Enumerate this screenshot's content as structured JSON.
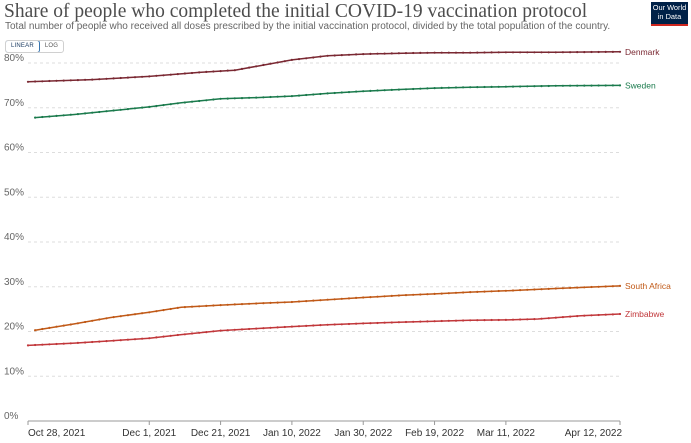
{
  "chart_data": {
    "type": "line",
    "title": "Share of people who completed the initial COVID-19 vaccination protocol",
    "subtitle": "Total number of people who received all doses prescribed by the initial vaccination protocol, divided by the total population of the country.",
    "y_unit": "%",
    "ylim": [
      0,
      80
    ],
    "y_ticks": [
      "0%",
      "10%",
      "20%",
      "30%",
      "40%",
      "50%",
      "60%",
      "70%",
      "80%"
    ],
    "y_tick_values": [
      0,
      10,
      20,
      30,
      40,
      50,
      60,
      70,
      80
    ],
    "xlim": [
      "2021-10-28",
      "2022-04-12"
    ],
    "x_ticks": [
      "Oct 28, 2021",
      "Dec 1, 2021",
      "Dec 21, 2021",
      "Jan 10, 2022",
      "Jan 30, 2022",
      "Feb 19, 2022",
      "Mar 11, 2022",
      "Apr 12, 2022"
    ],
    "x_tick_dates": [
      "2021-10-28",
      "2021-12-01",
      "2021-12-21",
      "2022-01-10",
      "2022-01-30",
      "2022-02-19",
      "2022-03-11",
      "2022-04-12"
    ],
    "grid": "horizontal dashed",
    "legend": "labels at line ends (right)",
    "series": [
      {
        "name": "Denmark",
        "color": "#7a2832",
        "x": [
          "2021-10-28",
          "2021-11-15",
          "2021-12-01",
          "2021-12-15",
          "2021-12-25",
          "2022-01-01",
          "2022-01-10",
          "2022-01-20",
          "2022-01-30",
          "2022-02-10",
          "2022-02-19",
          "2022-03-01",
          "2022-03-11",
          "2022-03-25",
          "2022-04-12"
        ],
        "values": [
          75.8,
          76.3,
          77.0,
          77.9,
          78.4,
          79.4,
          80.7,
          81.6,
          82.0,
          82.2,
          82.3,
          82.3,
          82.4,
          82.4,
          82.5
        ]
      },
      {
        "name": "Sweden",
        "color": "#1a7a4c",
        "x": [
          "2021-10-30",
          "2021-11-10",
          "2021-11-20",
          "2021-12-01",
          "2021-12-10",
          "2021-12-21",
          "2022-01-01",
          "2022-01-10",
          "2022-01-20",
          "2022-01-30",
          "2022-02-10",
          "2022-02-19",
          "2022-03-01",
          "2022-03-11",
          "2022-03-25",
          "2022-04-12"
        ],
        "values": [
          67.8,
          68.5,
          69.3,
          70.2,
          71.1,
          72.0,
          72.3,
          72.6,
          73.2,
          73.7,
          74.1,
          74.4,
          74.6,
          74.7,
          74.9,
          75.0
        ]
      },
      {
        "name": "South Africa",
        "color": "#c05917",
        "x": [
          "2021-10-30",
          "2021-11-10",
          "2021-11-20",
          "2021-12-01",
          "2021-12-10",
          "2021-12-21",
          "2022-01-01",
          "2022-01-10",
          "2022-01-20",
          "2022-01-30",
          "2022-02-10",
          "2022-02-19",
          "2022-03-01",
          "2022-03-11",
          "2022-03-25",
          "2022-04-12"
        ],
        "values": [
          20.3,
          21.7,
          23.1,
          24.3,
          25.4,
          25.9,
          26.3,
          26.6,
          27.1,
          27.6,
          28.1,
          28.4,
          28.8,
          29.1,
          29.6,
          30.2
        ]
      },
      {
        "name": "Zimbabwe",
        "color": "#c1373a",
        "x": [
          "2021-10-28",
          "2021-11-10",
          "2021-11-20",
          "2021-12-01",
          "2021-12-10",
          "2021-12-21",
          "2022-01-01",
          "2022-01-10",
          "2022-01-20",
          "2022-01-30",
          "2022-02-10",
          "2022-02-19",
          "2022-03-01",
          "2022-03-11",
          "2022-03-20",
          "2022-04-01",
          "2022-04-12"
        ],
        "values": [
          16.9,
          17.4,
          17.9,
          18.5,
          19.3,
          20.2,
          20.7,
          21.1,
          21.5,
          21.8,
          22.1,
          22.3,
          22.5,
          22.6,
          22.8,
          23.5,
          23.9
        ]
      }
    ]
  },
  "header": {
    "toggle_linear": "LINEAR",
    "toggle_log": "LOG",
    "logo_line1": "Our World",
    "logo_line2": "in Data"
  }
}
